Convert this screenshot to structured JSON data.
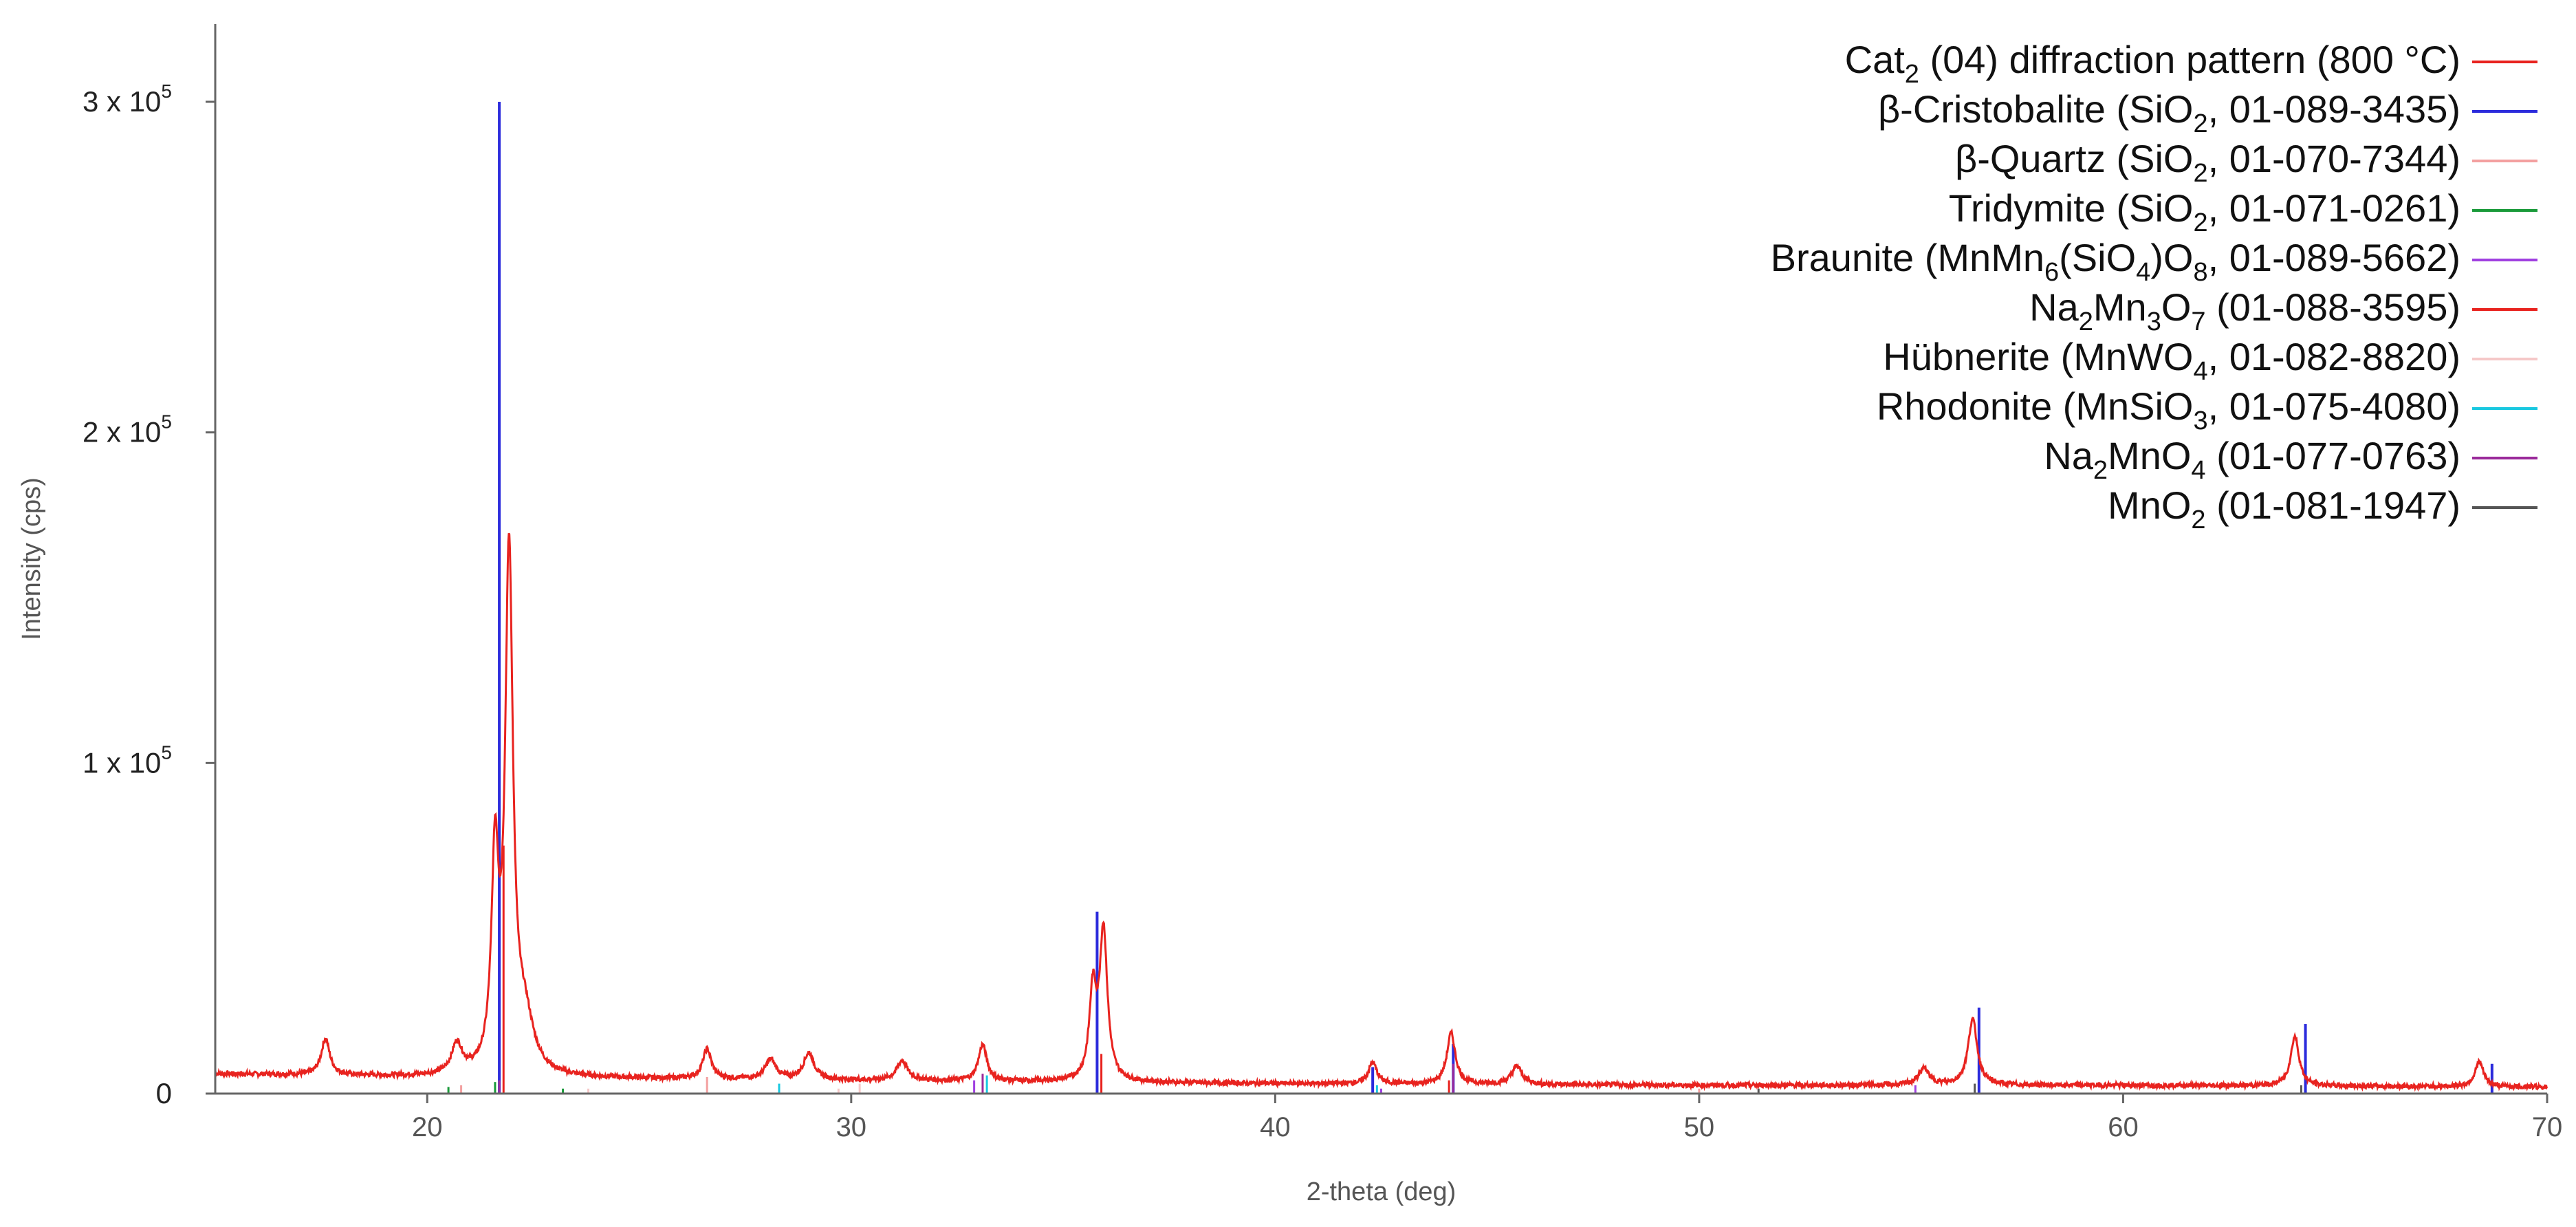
{
  "chart_data": {
    "type": "line",
    "title": "",
    "xlabel": "2-theta (deg)",
    "ylabel": "Intensity (cps)",
    "xlim": [
      15,
      70
    ],
    "ylim": [
      0,
      320000
    ],
    "grid": false,
    "legend_position": "top-right",
    "x_ticks": [
      {
        "value": 20,
        "label": "20"
      },
      {
        "value": 30,
        "label": "30"
      },
      {
        "value": 40,
        "label": "40"
      },
      {
        "value": 50,
        "label": "50"
      },
      {
        "value": 60,
        "label": "60"
      },
      {
        "value": 70,
        "label": "70"
      }
    ],
    "y_ticks": [
      {
        "value": 0,
        "base": "0",
        "exp": ""
      },
      {
        "value": 100000,
        "base": "1 x 10",
        "exp": "5"
      },
      {
        "value": 200000,
        "base": "2 x 10",
        "exp": "5"
      },
      {
        "value": 300000,
        "base": "3 x 10",
        "exp": "5"
      }
    ],
    "pattern": {
      "name": "Cat2 (04) diffraction pattern (800 °C)",
      "color": "#e8231f",
      "baseline": [
        [
          15,
          6000
        ],
        [
          20,
          5000
        ],
        [
          25,
          4500
        ],
        [
          30,
          4000
        ],
        [
          40,
          3000
        ],
        [
          50,
          2500
        ],
        [
          60,
          2500
        ],
        [
          70,
          2000
        ]
      ],
      "peaks": [
        {
          "x": 17.6,
          "y": 11000,
          "w": 0.12
        },
        {
          "x": 20.7,
          "y": 9000,
          "w": 0.15
        },
        {
          "x": 21.6,
          "y": 62000,
          "w": 0.1
        },
        {
          "x": 21.93,
          "y": 155000,
          "w": 0.11
        },
        {
          "x": 22.3,
          "y": 15000,
          "w": 0.25
        },
        {
          "x": 26.6,
          "y": 9000,
          "w": 0.12
        },
        {
          "x": 28.1,
          "y": 6000,
          "w": 0.15
        },
        {
          "x": 29.0,
          "y": 8000,
          "w": 0.15
        },
        {
          "x": 31.2,
          "y": 6000,
          "w": 0.15
        },
        {
          "x": 33.1,
          "y": 11000,
          "w": 0.12
        },
        {
          "x": 35.7,
          "y": 26000,
          "w": 0.1
        },
        {
          "x": 35.95,
          "y": 45000,
          "w": 0.11
        },
        {
          "x": 42.3,
          "y": 6500,
          "w": 0.12
        },
        {
          "x": 44.15,
          "y": 15500,
          "w": 0.12
        },
        {
          "x": 45.7,
          "y": 5500,
          "w": 0.15
        },
        {
          "x": 55.3,
          "y": 5000,
          "w": 0.15
        },
        {
          "x": 56.45,
          "y": 20000,
          "w": 0.13
        },
        {
          "x": 64.05,
          "y": 15000,
          "w": 0.12
        },
        {
          "x": 68.4,
          "y": 7500,
          "w": 0.12
        }
      ]
    },
    "references": [
      {
        "name": "β-Cristobalite (SiO2, 01-089-3435)",
        "color": "#2b2bdc",
        "sticks": [
          [
            21.7,
            300000
          ],
          [
            35.8,
            55000
          ],
          [
            42.3,
            8000
          ],
          [
            44.2,
            15000
          ],
          [
            56.6,
            26000
          ],
          [
            64.3,
            21000
          ],
          [
            68.7,
            9000
          ]
        ]
      },
      {
        "name": "β-Quartz (SiO2, 01-070-7344)",
        "color": "#f3a0a0",
        "sticks": [
          [
            26.6,
            5000
          ],
          [
            20.8,
            2500
          ],
          [
            50.0,
            1500
          ]
        ]
      },
      {
        "name": "Tridymite (SiO2, 01-071-0261)",
        "color": "#1a9a3a",
        "sticks": [
          [
            21.6,
            3500
          ],
          [
            20.5,
            2000
          ],
          [
            23.2,
            1500
          ]
        ]
      },
      {
        "name": "Braunite (MnMn6(SiO4)O8, 01-089-5662)",
        "color": "#a040e0",
        "sticks": [
          [
            32.9,
            4000
          ],
          [
            55.1,
            2500
          ],
          [
            42.5,
            1500
          ]
        ]
      },
      {
        "name": "Na2Mn3O7 (01-088-3595)",
        "color": "#e8231f",
        "sticks": [
          [
            21.8,
            75000
          ],
          [
            35.9,
            12000
          ],
          [
            44.1,
            4000
          ]
        ]
      },
      {
        "name": "Hübnerite (MnWO4, 01-082-8820)",
        "color": "#f5c8c8",
        "sticks": [
          [
            30.2,
            3000
          ],
          [
            29.7,
            1500
          ],
          [
            23.8,
            1500
          ]
        ]
      },
      {
        "name": "Rhodonite (MnSiO3, 01-075-4080)",
        "color": "#19c8e0",
        "sticks": [
          [
            33.2,
            5500
          ],
          [
            28.3,
            3000
          ],
          [
            42.4,
            2500
          ]
        ]
      },
      {
        "name": "Na2MnO4 (01-077-0763)",
        "color": "#9a2a9a",
        "sticks": [
          [
            44.2,
            9000
          ],
          [
            33.1,
            6000
          ],
          [
            21.7,
            4000
          ]
        ]
      },
      {
        "name": "MnO2 (01-081-1947)",
        "color": "#555555",
        "sticks": [
          [
            56.5,
            3000
          ],
          [
            64.2,
            2500
          ],
          [
            51.4,
            1500
          ]
        ]
      }
    ],
    "legend": [
      {
        "parts": [
          {
            "t": "Cat"
          },
          {
            "t": "2",
            "sub": true
          },
          {
            "t": " (04) diffraction pattern (800 °C)"
          }
        ],
        "color": "#e8231f"
      },
      {
        "parts": [
          {
            "t": "β-Cristobalite (SiO"
          },
          {
            "t": "2",
            "sub": true
          },
          {
            "t": ", 01-089-3435)"
          }
        ],
        "color": "#2b2bdc"
      },
      {
        "parts": [
          {
            "t": "β-Quartz (SiO"
          },
          {
            "t": "2",
            "sub": true
          },
          {
            "t": ", 01-070-7344)"
          }
        ],
        "color": "#f3a0a0"
      },
      {
        "parts": [
          {
            "t": "Tridymite (SiO"
          },
          {
            "t": "2",
            "sub": true
          },
          {
            "t": ", 01-071-0261)"
          }
        ],
        "color": "#1a9a3a"
      },
      {
        "parts": [
          {
            "t": "Braunite (MnMn"
          },
          {
            "t": "6",
            "sub": true
          },
          {
            "t": "(SiO"
          },
          {
            "t": "4",
            "sub": true
          },
          {
            "t": ")O"
          },
          {
            "t": "8",
            "sub": true
          },
          {
            "t": ", 01-089-5662)"
          }
        ],
        "color": "#a040e0"
      },
      {
        "parts": [
          {
            "t": "Na"
          },
          {
            "t": "2",
            "sub": true
          },
          {
            "t": "Mn"
          },
          {
            "t": "3",
            "sub": true
          },
          {
            "t": "O"
          },
          {
            "t": "7",
            "sub": true
          },
          {
            "t": " (01-088-3595)"
          }
        ],
        "color": "#e8231f"
      },
      {
        "parts": [
          {
            "t": "Hübnerite (MnWO"
          },
          {
            "t": "4",
            "sub": true
          },
          {
            "t": ", 01-082-8820)"
          }
        ],
        "color": "#f5c8c8"
      },
      {
        "parts": [
          {
            "t": "Rhodonite (MnSiO"
          },
          {
            "t": "3",
            "sub": true
          },
          {
            "t": ", 01-075-4080)"
          }
        ],
        "color": "#19c8e0"
      },
      {
        "parts": [
          {
            "t": "Na"
          },
          {
            "t": "2",
            "sub": true
          },
          {
            "t": "MnO"
          },
          {
            "t": "4",
            "sub": true
          },
          {
            "t": " (01-077-0763)"
          }
        ],
        "color": "#9a2a9a"
      },
      {
        "parts": [
          {
            "t": "MnO"
          },
          {
            "t": "2",
            "sub": true
          },
          {
            "t": " (01-081-1947)"
          }
        ],
        "color": "#555555"
      }
    ]
  }
}
